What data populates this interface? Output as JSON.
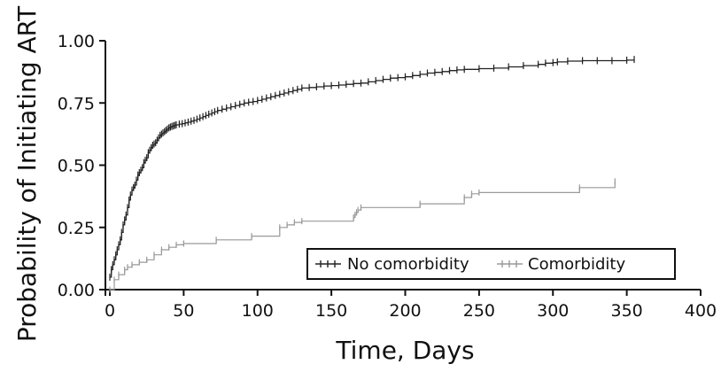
{
  "chart_data": {
    "type": "line",
    "title": "",
    "xlabel": "Time, Days",
    "ylabel": "Probability of Initiating ART",
    "xlim": [
      0,
      400
    ],
    "ylim": [
      0,
      1
    ],
    "x_ticks": [
      "0",
      "50",
      "100",
      "150",
      "200",
      "250",
      "300",
      "350",
      "400"
    ],
    "y_ticks": [
      "0.00",
      "0.25",
      "0.50",
      "0.75",
      "1.00"
    ],
    "grid": false,
    "legend": {
      "placement": "bottom-right",
      "boxed": true
    },
    "series": [
      {
        "name": "No comorbidity",
        "color": "#222222",
        "step": true,
        "x": [
          0,
          1,
          2,
          3,
          4,
          5,
          6,
          7,
          8,
          9,
          10,
          11,
          12,
          13,
          14,
          15,
          16,
          17,
          18,
          19,
          20,
          21,
          22,
          23,
          24,
          25,
          26,
          27,
          28,
          29,
          30,
          31,
          32,
          33,
          34,
          35,
          36,
          37,
          38,
          39,
          40,
          41,
          42,
          43,
          44,
          45,
          47,
          49,
          51,
          53,
          55,
          57,
          59,
          61,
          63,
          65,
          67,
          69,
          71,
          73,
          76,
          79,
          82,
          85,
          88,
          91,
          94,
          97,
          100,
          103,
          106,
          109,
          112,
          115,
          118,
          121,
          124,
          127,
          130,
          135,
          140,
          145,
          150,
          155,
          160,
          165,
          170,
          175,
          180,
          185,
          190,
          195,
          200,
          205,
          210,
          215,
          220,
          225,
          230,
          235,
          240,
          250,
          260,
          270,
          280,
          290,
          295,
          300,
          303,
          310,
          320,
          330,
          340,
          350,
          355
        ],
        "y": [
          0.05,
          0.08,
          0.1,
          0.12,
          0.14,
          0.16,
          0.18,
          0.2,
          0.23,
          0.26,
          0.28,
          0.3,
          0.33,
          0.36,
          0.38,
          0.4,
          0.41,
          0.42,
          0.44,
          0.46,
          0.47,
          0.48,
          0.49,
          0.51,
          0.52,
          0.53,
          0.55,
          0.56,
          0.57,
          0.58,
          0.585,
          0.59,
          0.6,
          0.61,
          0.62,
          0.625,
          0.63,
          0.635,
          0.64,
          0.645,
          0.65,
          0.653,
          0.656,
          0.658,
          0.66,
          0.662,
          0.665,
          0.667,
          0.67,
          0.673,
          0.677,
          0.68,
          0.685,
          0.69,
          0.695,
          0.7,
          0.705,
          0.71,
          0.715,
          0.72,
          0.725,
          0.73,
          0.735,
          0.74,
          0.745,
          0.75,
          0.753,
          0.756,
          0.76,
          0.765,
          0.77,
          0.775,
          0.78,
          0.785,
          0.79,
          0.795,
          0.8,
          0.805,
          0.81,
          0.812,
          0.815,
          0.818,
          0.82,
          0.822,
          0.825,
          0.828,
          0.83,
          0.835,
          0.84,
          0.845,
          0.85,
          0.852,
          0.855,
          0.86,
          0.865,
          0.87,
          0.873,
          0.876,
          0.88,
          0.883,
          0.885,
          0.888,
          0.89,
          0.895,
          0.9,
          0.905,
          0.91,
          0.912,
          0.915,
          0.918,
          0.92,
          0.92,
          0.92,
          0.922,
          0.925
        ]
      },
      {
        "name": "Comorbidity",
        "color": "#999999",
        "step": true,
        "x": [
          0,
          3,
          6,
          10,
          12,
          15,
          20,
          25,
          30,
          35,
          40,
          45,
          50,
          72,
          96,
          115,
          120,
          125,
          130,
          165,
          166,
          167,
          168,
          170,
          210,
          240,
          245,
          250,
          318,
          342
        ],
        "y": [
          0.0,
          0.04,
          0.06,
          0.08,
          0.09,
          0.1,
          0.11,
          0.12,
          0.14,
          0.16,
          0.17,
          0.18,
          0.185,
          0.2,
          0.215,
          0.25,
          0.26,
          0.27,
          0.275,
          0.29,
          0.3,
          0.31,
          0.32,
          0.33,
          0.345,
          0.37,
          0.385,
          0.39,
          0.41,
          0.435
        ]
      }
    ]
  }
}
